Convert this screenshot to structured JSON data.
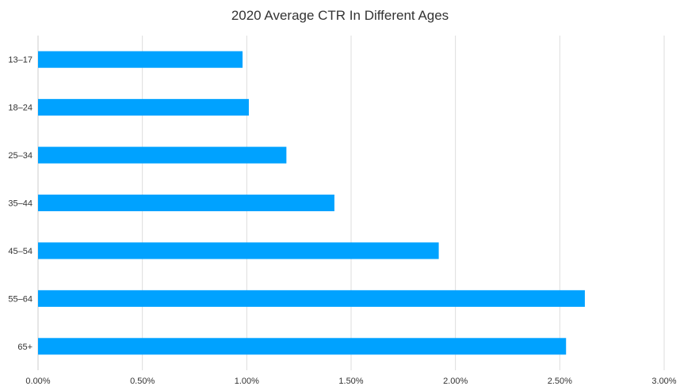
{
  "chart_data": {
    "type": "bar",
    "orientation": "horizontal",
    "title": "2020 Average CTR In Different Ages",
    "xlabel": "",
    "ylabel": "",
    "categories": [
      "13–17",
      "18–24",
      "25–34",
      "35–44",
      "45–54",
      "55–64",
      "65+"
    ],
    "series": [
      {
        "values": [
          0.98,
          1.01,
          1.19,
          1.42,
          1.92,
          2.62,
          2.53
        ]
      }
    ],
    "xlim": [
      0,
      3
    ],
    "x_ticks": [
      0,
      0.5,
      1,
      1.5,
      2,
      2.5,
      3
    ],
    "x_tick_labels": [
      "0.00%",
      "0.50%",
      "1.00%",
      "1.50%",
      "2.00%",
      "2.50%",
      "3.00%"
    ],
    "grid": "vertical",
    "legend": "none",
    "colors": {
      "bar": "#00A2FF",
      "grid": "#DDDDDD",
      "text": "#333333"
    }
  }
}
